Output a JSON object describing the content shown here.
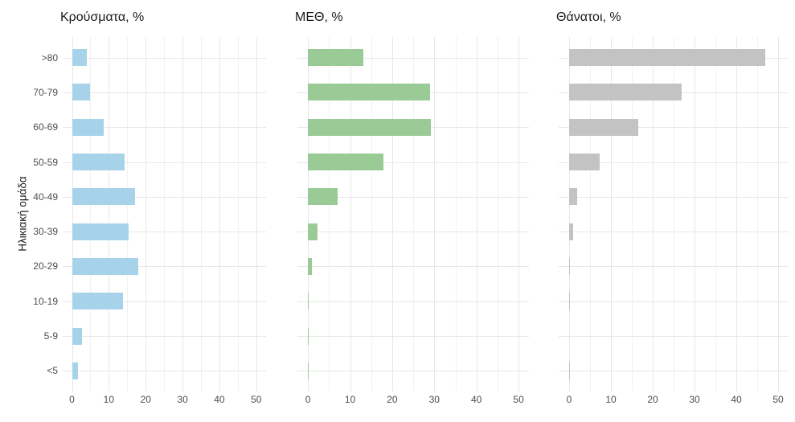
{
  "figure": {
    "background": "#ffffff",
    "grid_major_color": "#e7e7e7",
    "grid_minor_color": "#f1f1f1",
    "axis_text_color": "#4d4d4d"
  },
  "chart_data": {
    "type": "bar",
    "orientation": "horizontal",
    "ylabel": "Ηλικιακή ομάδα",
    "xlabel": "",
    "categories": [
      ">80",
      "70-79",
      "60-69",
      "50-59",
      "40-49",
      "30-39",
      "20-29",
      "10-19",
      "5-9",
      "<5"
    ],
    "xlim": [
      0,
      50
    ],
    "xticks": [
      0,
      10,
      20,
      30,
      40,
      50
    ],
    "minor_ticks_every": 5,
    "grid": true,
    "legend": "none",
    "panels": [
      {
        "title": "Κρούσματα, %",
        "color": "#a6d3ea",
        "values": [
          4.0,
          5.0,
          8.7,
          14.3,
          17.2,
          15.4,
          18.0,
          13.9,
          2.8,
          1.7
        ]
      },
      {
        "title": "ΜΕΘ, %",
        "color": "#9acb97",
        "values": [
          13.2,
          29.0,
          29.2,
          18.0,
          7.1,
          2.3,
          0.9,
          0.2,
          0.1,
          0.1
        ]
      },
      {
        "title": "Θάνατοι, %",
        "color": "#c3c3c3",
        "values": [
          47.0,
          27.0,
          16.5,
          7.3,
          2.0,
          0.9,
          0.15,
          0.15,
          0.0,
          0.1
        ]
      }
    ]
  }
}
